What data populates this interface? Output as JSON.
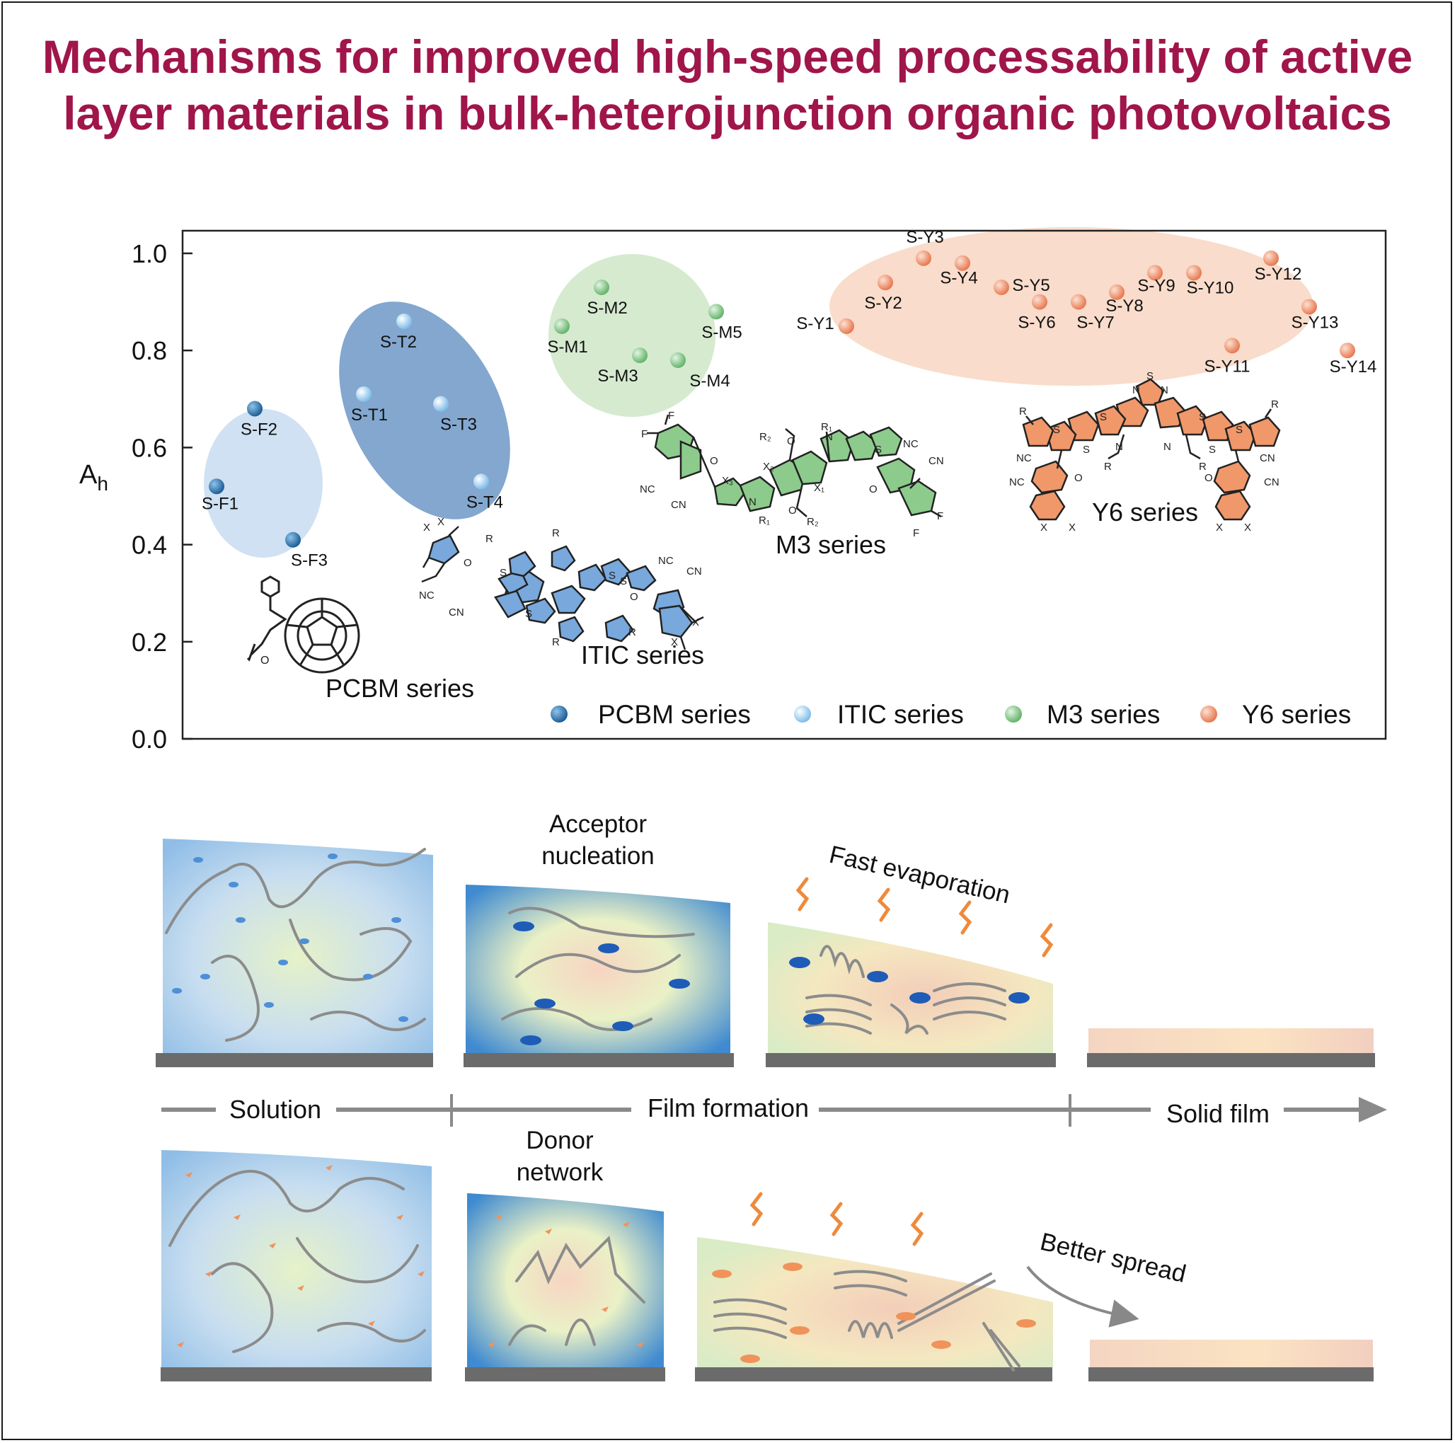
{
  "title": {
    "line1": "Mechanisms for improved high-speed processability of active",
    "line2": "layer materials in bulk-heterojunction organic photovoltaics"
  },
  "chart_data": {
    "type": "scatter",
    "ylabel_main": "A",
    "ylabel_sub": "h",
    "xlabel": "",
    "ylim": [
      0.0,
      1.0
    ],
    "yticks": [
      "0.0",
      "0.2",
      "0.4",
      "0.6",
      "0.8",
      "1.0"
    ],
    "legend_position": "bottom-right",
    "series": [
      {
        "name": "PCBM series",
        "color": "#2f6fa6",
        "points": [
          {
            "label": "S-F1",
            "y": 0.52
          },
          {
            "label": "S-F2",
            "y": 0.68
          },
          {
            "label": "S-F3",
            "y": 0.41
          }
        ]
      },
      {
        "name": "ITIC series",
        "color": "#8fc6ee",
        "points": [
          {
            "label": "S-T1",
            "y": 0.71
          },
          {
            "label": "S-T2",
            "y": 0.86
          },
          {
            "label": "S-T3",
            "y": 0.69
          },
          {
            "label": "S-T4",
            "y": 0.53
          }
        ]
      },
      {
        "name": "M3 series",
        "color": "#86c78a",
        "points": [
          {
            "label": "S-M1",
            "y": 0.85
          },
          {
            "label": "S-M2",
            "y": 0.93
          },
          {
            "label": "S-M3",
            "y": 0.79
          },
          {
            "label": "S-M4",
            "y": 0.78
          },
          {
            "label": "S-M5",
            "y": 0.88
          }
        ]
      },
      {
        "name": "Y6 series",
        "color": "#f0936b",
        "points": [
          {
            "label": "S-Y1",
            "y": 0.85
          },
          {
            "label": "S-Y2",
            "y": 0.94
          },
          {
            "label": "S-Y3",
            "y": 0.99
          },
          {
            "label": "S-Y4",
            "y": 0.98
          },
          {
            "label": "S-Y5",
            "y": 0.93
          },
          {
            "label": "S-Y6",
            "y": 0.9
          },
          {
            "label": "S-Y7",
            "y": 0.9
          },
          {
            "label": "S-Y8",
            "y": 0.92
          },
          {
            "label": "S-Y9",
            "y": 0.96
          },
          {
            "label": "S-Y10",
            "y": 0.96
          },
          {
            "label": "S-Y11",
            "y": 0.81
          },
          {
            "label": "S-Y12",
            "y": 0.99
          },
          {
            "label": "S-Y13",
            "y": 0.89
          },
          {
            "label": "S-Y14",
            "y": 0.8
          }
        ]
      }
    ]
  },
  "structure_labels": {
    "pcbm": "PCBM series",
    "itic": "ITIC series",
    "m3": "M3 series",
    "y6": "Y6 series"
  },
  "schematic": {
    "acceptor_nucleation_line1": "Acceptor",
    "acceptor_nucleation_line2": "nucleation",
    "fast_evaporation": "Fast evaporation",
    "donor_network_line1": "Donor",
    "donor_network_line2": "network",
    "better_spread": "Better spread",
    "stage_solution": "Solution",
    "stage_film_formation": "Film formation",
    "stage_solid_film": "Solid film"
  }
}
